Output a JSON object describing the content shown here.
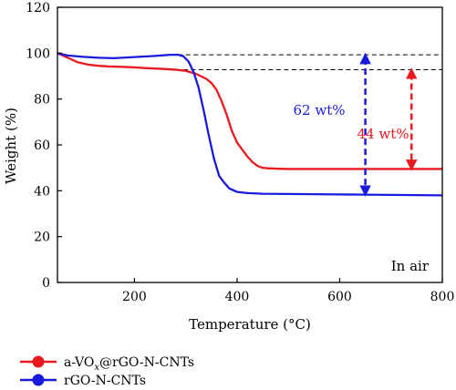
{
  "chart_data": {
    "type": "line",
    "xlabel": "Temperature (°C)",
    "ylabel": "Weight (%)",
    "xlim": [
      50,
      800
    ],
    "ylim": [
      0,
      120
    ],
    "xticks": [
      200,
      400,
      600,
      800
    ],
    "yticks": [
      0,
      20,
      40,
      60,
      80,
      100,
      120
    ],
    "grid": false,
    "legend_position": "bottom-left, outside plot",
    "series": [
      {
        "name_prefix": "a-VO",
        "name_sub": "x",
        "name_suffix": "@rGO-N-CNTs",
        "color": "#e8191f",
        "x": [
          50,
          70,
          90,
          110,
          130,
          150,
          180,
          200,
          220,
          250,
          280,
          300,
          320,
          340,
          350,
          360,
          370,
          380,
          390,
          400,
          410,
          420,
          430,
          440,
          450,
          460,
          480,
          500,
          550,
          600,
          650,
          700,
          750,
          800
        ],
        "y": [
          100,
          98,
          96,
          95,
          94.5,
          94.2,
          94,
          93.8,
          93.5,
          93.2,
          92.8,
          92.3,
          91,
          88.8,
          87,
          84,
          79,
          73,
          66,
          61,
          58,
          55,
          52.5,
          50.8,
          50,
          49.8,
          49.6,
          49.5,
          49.5,
          49.5,
          49.5,
          49.5,
          49.5,
          49.5
        ]
      },
      {
        "name": "rGO-N-CNTs",
        "color": "#1a1adc",
        "x": [
          50,
          70,
          100,
          130,
          160,
          200,
          240,
          270,
          285,
          295,
          305,
          315,
          325,
          335,
          345,
          355,
          365,
          375,
          385,
          400,
          420,
          450,
          500,
          550,
          600,
          650,
          700,
          750,
          800
        ],
        "y": [
          100,
          99,
          98.4,
          98,
          97.8,
          98.3,
          98.8,
          99.3,
          99.3,
          98.7,
          96.5,
          92,
          85,
          75,
          64,
          54,
          46.5,
          43.5,
          41,
          39.5,
          39,
          38.7,
          38.6,
          38.5,
          38.4,
          38.3,
          38.2,
          38.1,
          38
        ]
      }
    ],
    "annotations": {
      "reference_lines_y": [
        99.3,
        92.8
      ],
      "arrow_blue": {
        "x": 650,
        "y_top": 99.3,
        "y_bottom": 38.3,
        "label": "62 wt%",
        "color": "#1a1adc"
      },
      "arrow_red": {
        "x": 740,
        "y_top": 92.8,
        "y_bottom": 49.5,
        "label": "44 wt%",
        "color": "#e8191f"
      },
      "in_air": "In air"
    }
  }
}
